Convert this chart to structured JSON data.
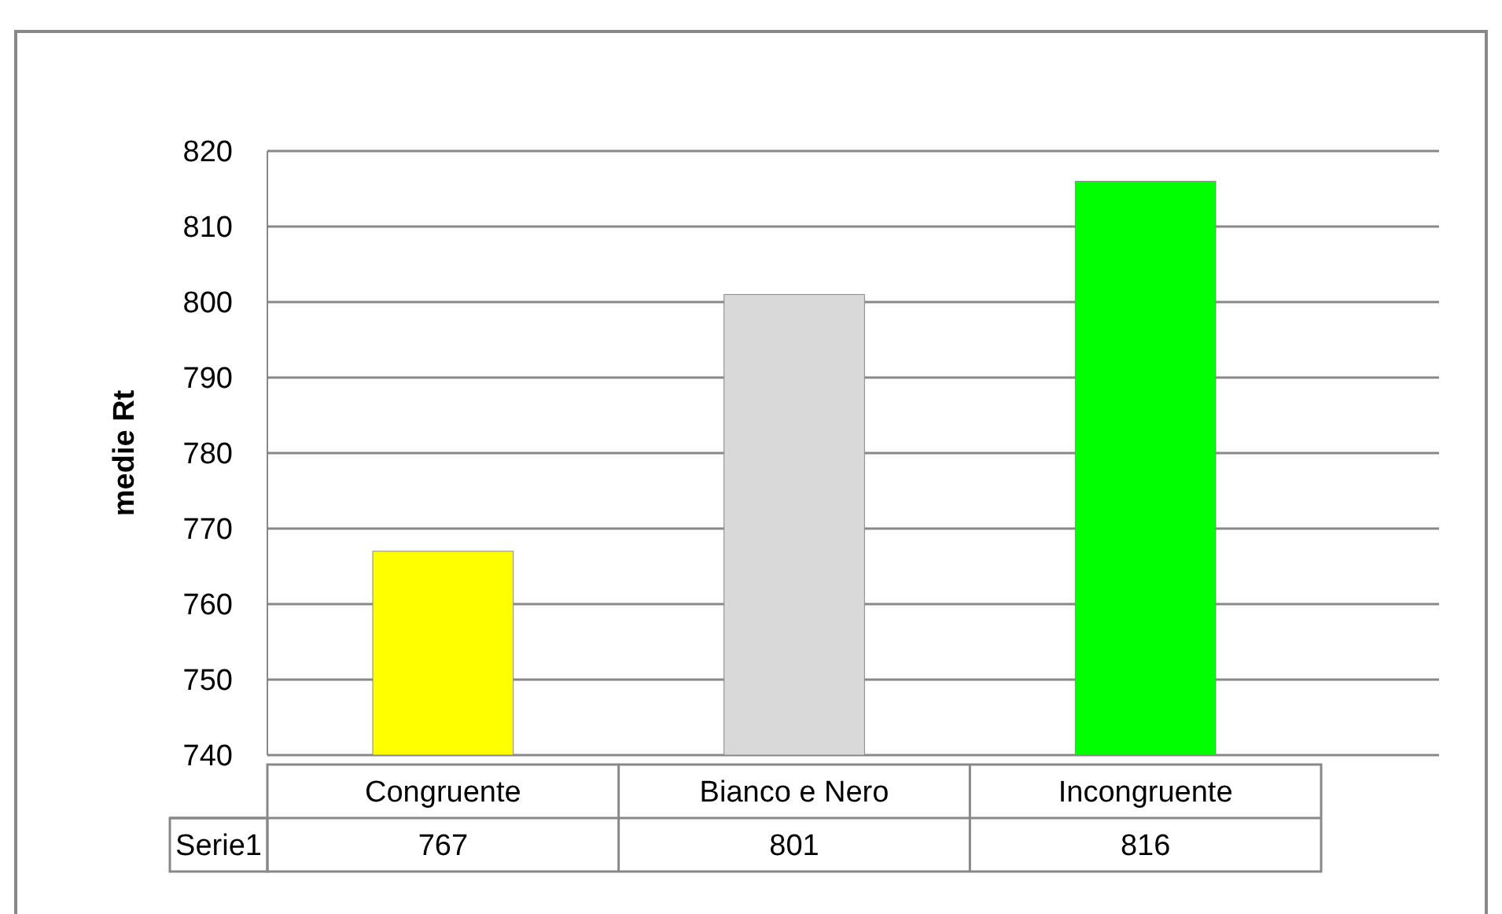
{
  "chart_data": {
    "type": "bar",
    "ylabel": "medie Rt",
    "categories": [
      "Congruente",
      "Bianco e Nero",
      "Incongruente"
    ],
    "series": [
      {
        "name": "Serie1",
        "values": [
          767,
          801,
          816
        ]
      }
    ],
    "colors": [
      "#ffff00",
      "#d9d9d9",
      "#00ff00"
    ],
    "ylim": [
      740,
      820
    ],
    "yticks": [
      740,
      750,
      760,
      770,
      780,
      790,
      800,
      810,
      820
    ],
    "grid": "y",
    "data_labels": true,
    "legend": false
  }
}
